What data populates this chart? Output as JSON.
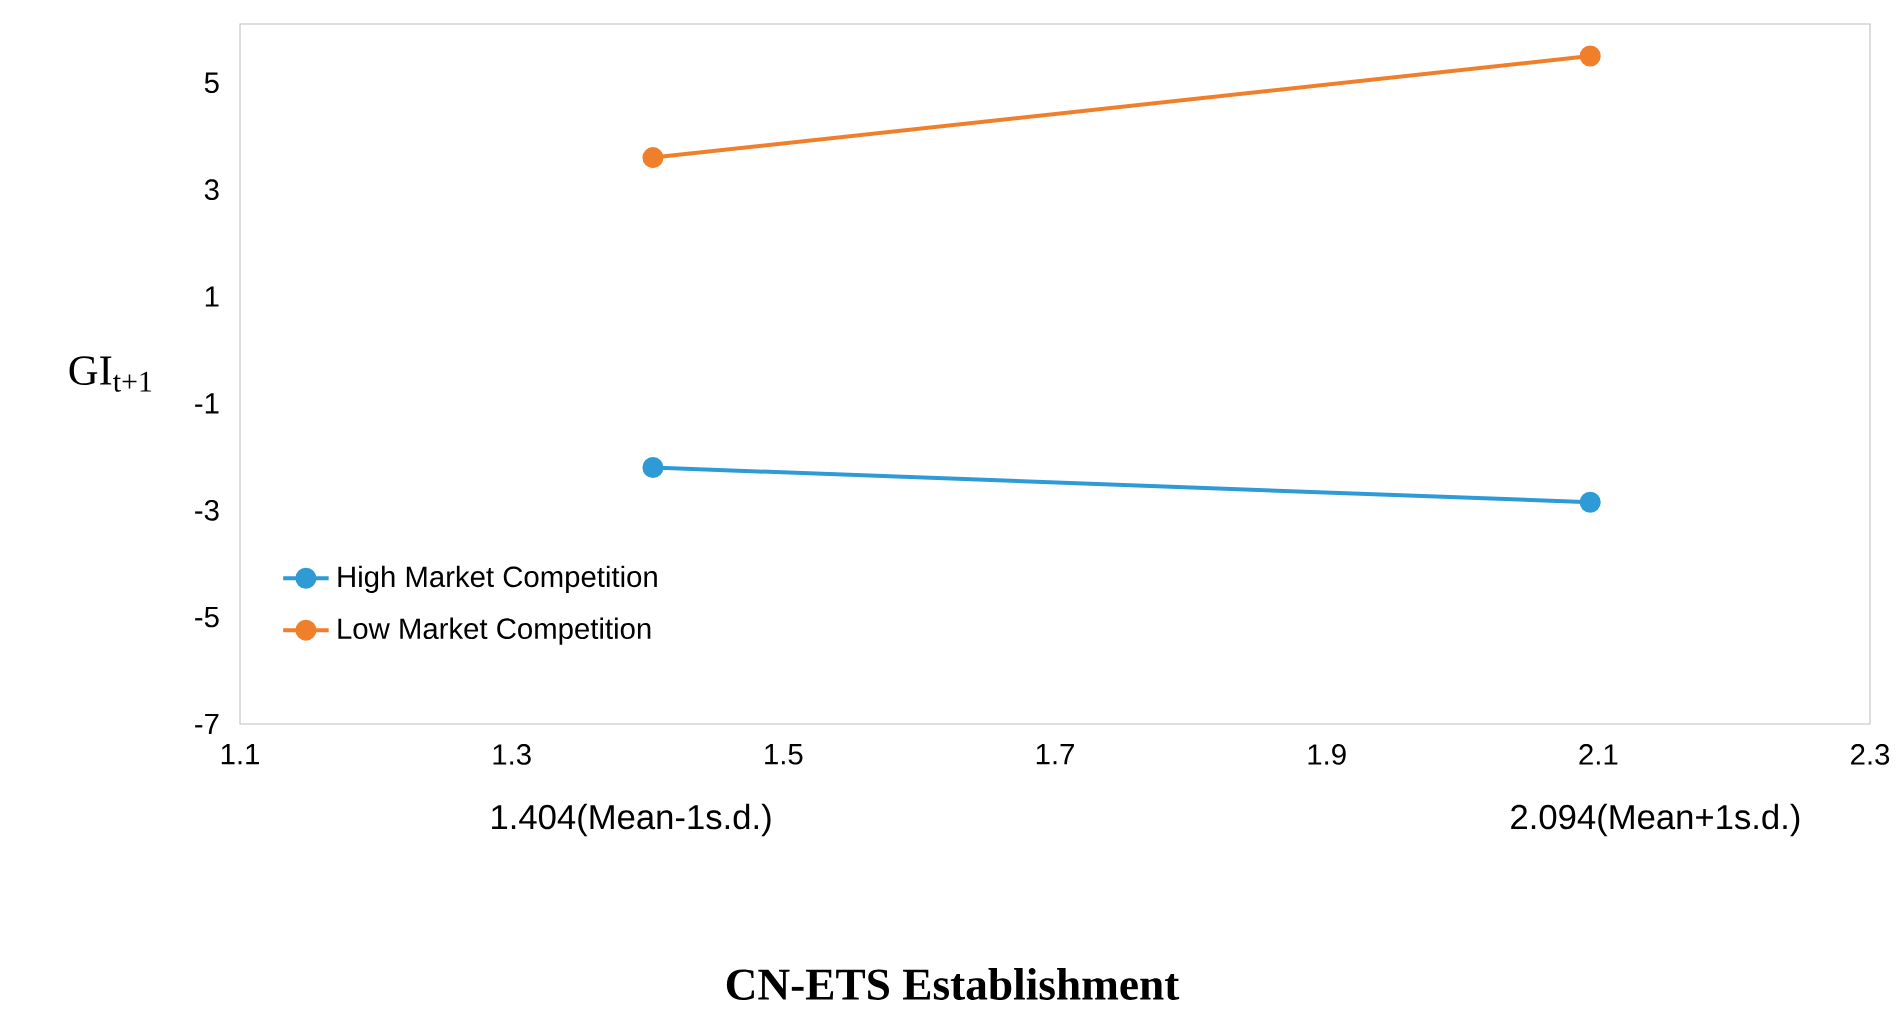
{
  "chart_data": {
    "type": "line",
    "xlabel": "CN-ETS Establishment",
    "ylabel": "GI$_{t+1}$",
    "x": [
      1.404,
      2.094
    ],
    "series": [
      {
        "name": "High Market Competition",
        "color": "#2e9bd6",
        "values": [
          -2.2,
          -2.85
        ]
      },
      {
        "name": "Low Market Competition",
        "color": "#f07f2c",
        "values": [
          3.6,
          5.5
        ]
      }
    ],
    "xlim": [
      1.1,
      2.3
    ],
    "ylim": [
      -7,
      6.1
    ],
    "xticks": [
      1.1,
      1.3,
      1.5,
      1.7,
      1.9,
      2.1,
      2.3
    ],
    "yticks": [
      -7,
      -5,
      -3,
      -1,
      1,
      3,
      5
    ],
    "annotations": [
      "1.404(Mean-1s.d.)",
      "2.094(Mean+1s.d.)"
    ],
    "legend": "bottom left",
    "marker": "circle",
    "line_style": "solid",
    "grid": false
  }
}
